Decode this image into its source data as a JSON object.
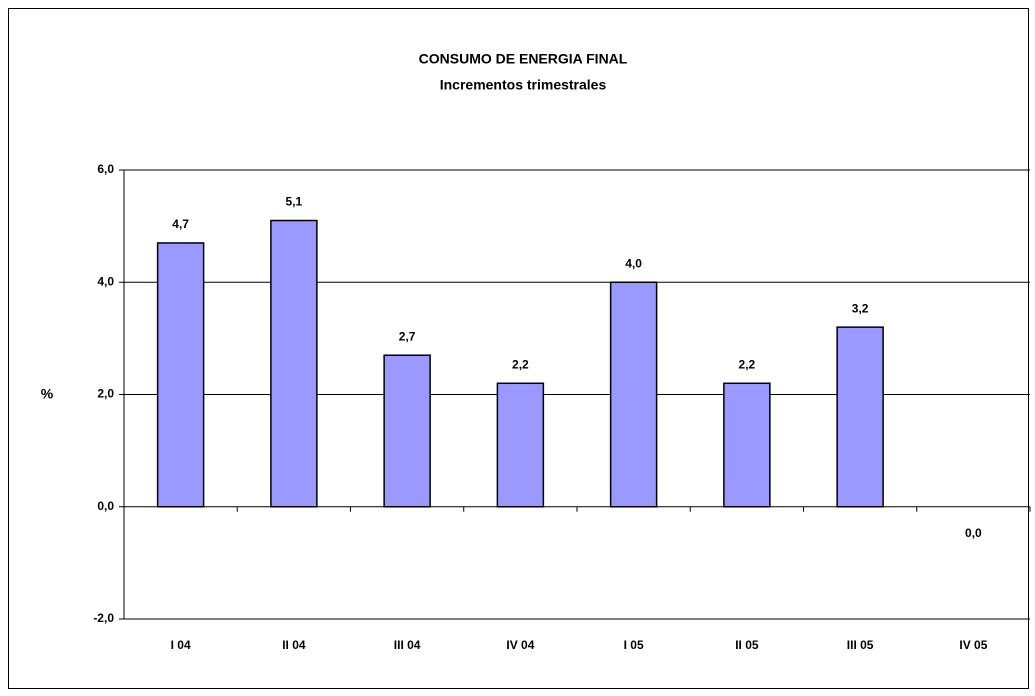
{
  "chart_data": {
    "type": "bar",
    "title": "CONSUMO DE ENERGIA FINAL",
    "subtitle": "Incrementos trimestrales",
    "y_label": "%",
    "categories": [
      "I 04",
      "II 04",
      "III 04",
      "IV 04",
      "I 05",
      "II 05",
      "III 05",
      "IV 05"
    ],
    "values": [
      4.7,
      5.1,
      2.7,
      2.2,
      4.0,
      2.2,
      3.2,
      0.0
    ],
    "value_labels": [
      "4,7",
      "5,1",
      "2,7",
      "2,2",
      "4,0",
      "2,2",
      "3,2",
      "0,0"
    ],
    "color": "#9999ff",
    "ylim": [
      -2,
      6
    ],
    "yticks": [
      {
        "value": -2,
        "label": "-2,0"
      },
      {
        "value": 0,
        "label": "0,0"
      },
      {
        "value": 2,
        "label": "2,0"
      },
      {
        "value": 4,
        "label": "4,0"
      },
      {
        "value": 6,
        "label": "6,0"
      }
    ],
    "grid": true
  }
}
